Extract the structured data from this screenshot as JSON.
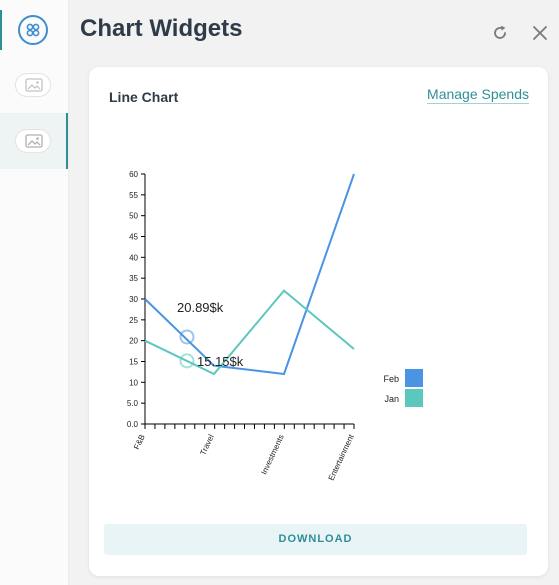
{
  "app": {
    "title": "Chart Widgets"
  },
  "rail": {
    "home_icon": "apps-grid-icon",
    "items": [
      {
        "icon": "image-icon",
        "active": false
      },
      {
        "icon": "image-icon",
        "active": true
      }
    ]
  },
  "header": {
    "refresh_icon": "refresh-icon",
    "close_icon": "close-icon"
  },
  "card": {
    "title": "Line Chart",
    "manage_link": "Manage Spends",
    "download_label": "DOWNLOAD"
  },
  "colors": {
    "accent": "#2f8f96",
    "feb": "#4a94e3",
    "jan": "#5ac8bd"
  },
  "chart_data": {
    "type": "line",
    "categories": [
      "F&B",
      "Travel",
      "Investments",
      "Entertainment"
    ],
    "ylim": [
      0,
      60
    ],
    "yticks": [
      "0.0",
      "5.0",
      "10",
      "15",
      "20",
      "25",
      "30",
      "35",
      "40",
      "45",
      "50",
      "55",
      "60"
    ],
    "series": [
      {
        "name": "Feb",
        "color": "#4a94e3",
        "values": [
          30,
          14,
          12,
          60
        ]
      },
      {
        "name": "Jan",
        "color": "#5ac8bd",
        "values": [
          20,
          12,
          32,
          18
        ]
      }
    ],
    "legend": [
      "Feb",
      "Jan"
    ],
    "legend_position": "right",
    "hover_labels": [
      {
        "series": "Feb",
        "text": "20.89$k",
        "value": 20.89
      },
      {
        "series": "Jan",
        "text": "15.15$k",
        "value": 15.15
      }
    ]
  }
}
